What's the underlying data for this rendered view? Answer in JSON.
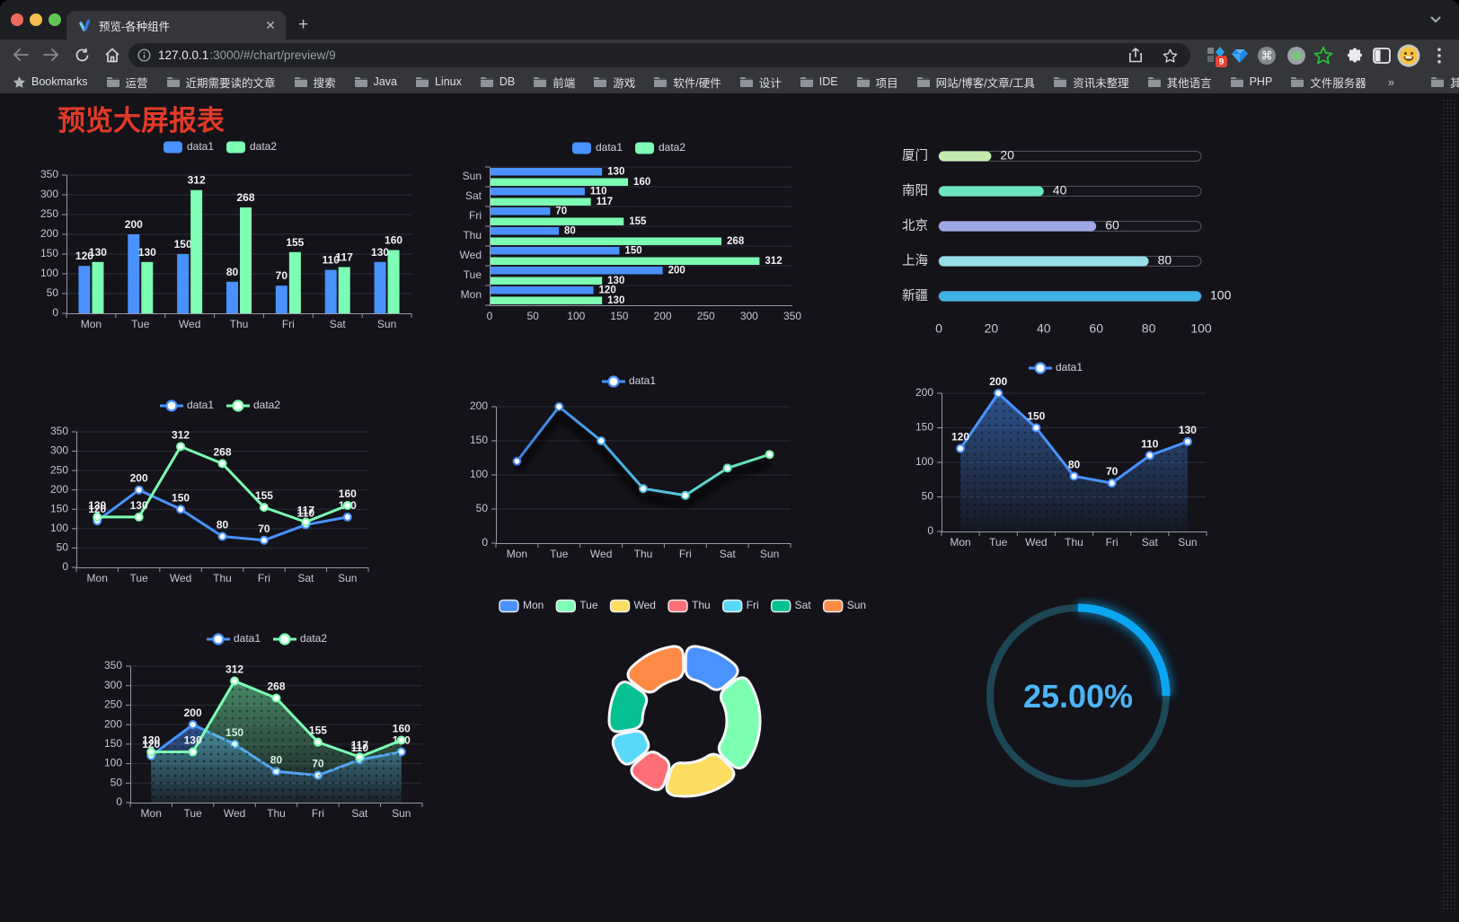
{
  "browser": {
    "tab_title": "预览-各种组件",
    "new_tab_button": "+",
    "url": {
      "host": "127.0.0.1",
      "rest": ":3000/#/chart/preview/9"
    },
    "extension_badge": "9",
    "bookmarks_bar": {
      "root_label": "Bookmarks",
      "items": [
        "运营",
        "近期需要读的文章",
        "搜索",
        "Java",
        "Linux",
        "DB",
        "前端",
        "游戏",
        "软件/硬件",
        "设计",
        "IDE",
        "项目",
        "网站/博客/文章/工具",
        "资讯未整理",
        "其他语言",
        "PHP",
        "文件服务器"
      ],
      "overflow": "»",
      "other_bookmarks": "其他书签"
    }
  },
  "page": {
    "title": "预览大屏报表",
    "title_color": "#e23a28",
    "background": "#131319"
  },
  "chart_data": [
    {
      "id": "bar-vertical",
      "type": "bar",
      "categories": [
        "Mon",
        "Tue",
        "Wed",
        "Thu",
        "Fri",
        "Sat",
        "Sun"
      ],
      "series": [
        {
          "name": "data1",
          "color": "#4992ff",
          "values": [
            120,
            200,
            150,
            80,
            70,
            110,
            130
          ]
        },
        {
          "name": "data2",
          "color": "#7cffb2",
          "values": [
            130,
            130,
            312,
            268,
            155,
            117,
            160
          ]
        }
      ],
      "ylim": [
        0,
        350
      ],
      "ytick": 50,
      "legend_position": "top",
      "grid": true
    },
    {
      "id": "bar-horizontal",
      "type": "bar-h",
      "categories": [
        "Mon",
        "Tue",
        "Wed",
        "Thu",
        "Fri",
        "Sat",
        "Sun"
      ],
      "series": [
        {
          "name": "data1",
          "color": "#4992ff",
          "values": [
            120,
            200,
            150,
            80,
            70,
            110,
            130
          ]
        },
        {
          "name": "data2",
          "color": "#7cffb2",
          "values": [
            130,
            130,
            312,
            268,
            155,
            117,
            160
          ]
        }
      ],
      "xlim": [
        0,
        350
      ],
      "xtick": 50,
      "legend_position": "top",
      "grid": true
    },
    {
      "id": "progress-list",
      "type": "progress",
      "max": 100,
      "ticks": [
        0,
        20,
        40,
        60,
        80,
        100
      ],
      "items": [
        {
          "label": "厦门",
          "value": 20,
          "color": "#c4ebad"
        },
        {
          "label": "南阳",
          "value": 40,
          "color": "#6be6c1"
        },
        {
          "label": "北京",
          "value": 60,
          "color": "#a0a7e6"
        },
        {
          "label": "上海",
          "value": 80,
          "color": "#96dee8"
        },
        {
          "label": "新疆",
          "value": 100,
          "color": "#3fb1e3"
        }
      ]
    },
    {
      "id": "line-basic",
      "type": "line",
      "categories": [
        "Mon",
        "Tue",
        "Wed",
        "Thu",
        "Fri",
        "Sat",
        "Sun"
      ],
      "series": [
        {
          "name": "data1",
          "color": "#4992ff",
          "values": [
            120,
            200,
            150,
            80,
            70,
            110,
            130
          ]
        },
        {
          "name": "data2",
          "color": "#7cffb2",
          "values": [
            130,
            130,
            312,
            268,
            155,
            117,
            160
          ]
        }
      ],
      "ylim": [
        0,
        350
      ],
      "ytick": 50,
      "labels": true,
      "legend_position": "top",
      "grid": true
    },
    {
      "id": "line-gradient",
      "type": "line",
      "categories": [
        "Mon",
        "Tue",
        "Wed",
        "Thu",
        "Fri",
        "Sat",
        "Sun"
      ],
      "series": [
        {
          "name": "data1",
          "color": "#4992ff",
          "gradient": [
            "#3b74dd",
            "#48a4ec",
            "#57d0d8",
            "#74efa0"
          ],
          "values": [
            120,
            200,
            150,
            80,
            70,
            110,
            130
          ]
        }
      ],
      "ylim": [
        0,
        200
      ],
      "ytick": 50,
      "labels": false,
      "shadow": true,
      "legend_position": "top",
      "grid": true
    },
    {
      "id": "line-area",
      "type": "line",
      "categories": [
        "Mon",
        "Tue",
        "Wed",
        "Thu",
        "Fri",
        "Sat",
        "Sun"
      ],
      "series": [
        {
          "name": "data1",
          "color": "#4992ff",
          "area": true,
          "values": [
            120,
            200,
            150,
            80,
            70,
            110,
            130
          ]
        }
      ],
      "ylim": [
        0,
        200
      ],
      "ytick": 50,
      "labels": true,
      "legend_position": "top",
      "grid": true
    },
    {
      "id": "line-area-double",
      "type": "line",
      "categories": [
        "Mon",
        "Tue",
        "Wed",
        "Thu",
        "Fri",
        "Sat",
        "Sun"
      ],
      "series": [
        {
          "name": "data1",
          "color": "#4992ff",
          "area": true,
          "values": [
            120,
            200,
            150,
            80,
            70,
            110,
            130
          ]
        },
        {
          "name": "data2",
          "color": "#7cffb2",
          "area": true,
          "values": [
            130,
            130,
            312,
            268,
            155,
            117,
            160
          ]
        }
      ],
      "ylim": [
        0,
        350
      ],
      "ytick": 50,
      "labels": true,
      "legend_position": "top",
      "grid": true
    },
    {
      "id": "donut",
      "type": "donut",
      "categories": [
        "Mon",
        "Tue",
        "Wed",
        "Thu",
        "Fri",
        "Sat",
        "Sun"
      ],
      "values": [
        120,
        200,
        150,
        80,
        70,
        110,
        130
      ],
      "colors": [
        "#4992ff",
        "#7cffb2",
        "#fddd60",
        "#ff6e76",
        "#58d9f9",
        "#05c091",
        "#ff8a45"
      ],
      "legend_position": "top"
    },
    {
      "id": "gauge",
      "type": "gauge",
      "value": 25,
      "label": "25.00%",
      "color": "#0ba6f1",
      "track_color": "#1d4752",
      "text_color": "#4cb5f5"
    }
  ]
}
